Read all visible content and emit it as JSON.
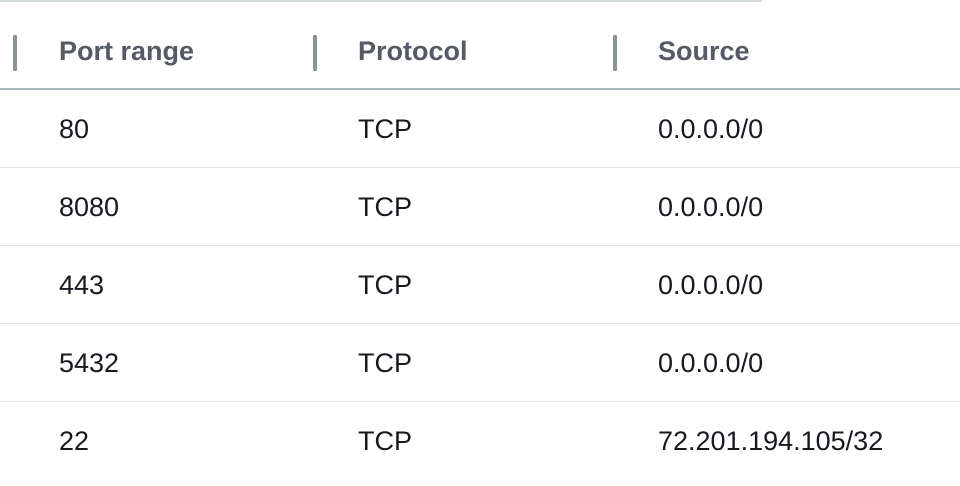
{
  "table": {
    "columns": [
      "Port range",
      "Protocol",
      "Source"
    ],
    "rows": [
      {
        "port_range": "80",
        "protocol": "TCP",
        "source": "0.0.0.0/0"
      },
      {
        "port_range": "8080",
        "protocol": "TCP",
        "source": "0.0.0.0/0"
      },
      {
        "port_range": "443",
        "protocol": "TCP",
        "source": "0.0.0.0/0"
      },
      {
        "port_range": "5432",
        "protocol": "TCP",
        "source": "0.0.0.0/0"
      },
      {
        "port_range": "22",
        "protocol": "TCP",
        "source": "72.201.194.105/32"
      }
    ]
  }
}
